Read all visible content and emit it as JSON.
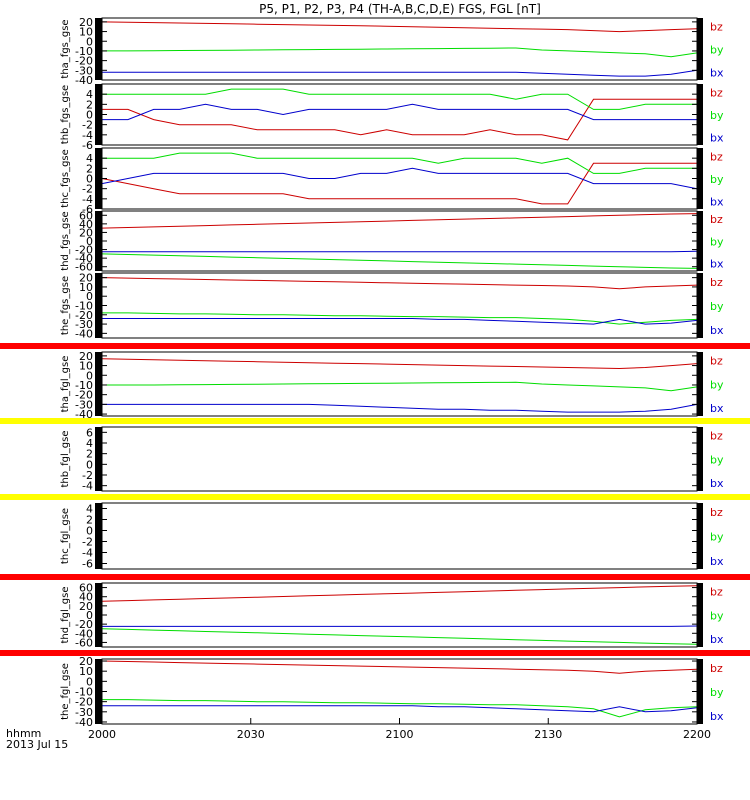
{
  "title": "P5, P1, P2, P3, P4 (TH-A,B,C,D,E) FGS, FGL [nT]",
  "time_axis": {
    "label_line1": "hhmm",
    "label_line2": "2013 Jul 15",
    "tick_labels": [
      "2000",
      "2030",
      "2100",
      "2130",
      "2200"
    ]
  },
  "colors": {
    "bz": "#cc0000",
    "by": "#00dd00",
    "bx": "#0000cc"
  },
  "chart_data": [
    {
      "type": "line",
      "ylabel": "tha_fgs_gse",
      "ylim": [
        -40,
        24
      ],
      "ticks": [
        20,
        10,
        0,
        -10,
        -20,
        -30,
        -40
      ],
      "tick_labels": [
        "20",
        "10",
        "0",
        "-10",
        "-20",
        "-30",
        "-40"
      ],
      "header_bar": null,
      "series": [
        {
          "name": "bz",
          "values": [
            20,
            19.6,
            19.2,
            18.8,
            18.4,
            18,
            17.6,
            17.2,
            16.8,
            16.4,
            16,
            15.5,
            15,
            14.5,
            14,
            13.5,
            13,
            12.5,
            12,
            11,
            10,
            11,
            12,
            13
          ]
        },
        {
          "name": "by",
          "values": [
            -10,
            -10,
            -9.8,
            -9.6,
            -9.4,
            -9.2,
            -9,
            -8.8,
            -8.6,
            -8.4,
            -8.2,
            -8,
            -7.8,
            -7.6,
            -7.4,
            -7.2,
            -7,
            -9,
            -10,
            -11,
            -12,
            -13,
            -16,
            -12
          ]
        },
        {
          "name": "bx",
          "values": [
            -32,
            -32,
            -32,
            -32,
            -32,
            -32,
            -32,
            -32,
            -32,
            -32,
            -32,
            -32,
            -32,
            -32,
            -32,
            -32,
            -32,
            -33,
            -34,
            -35,
            -36,
            -36,
            -34,
            -30
          ]
        }
      ]
    },
    {
      "type": "line",
      "ylabel": "thb_fgs_gse",
      "ylim": [
        -6,
        6
      ],
      "ticks": [
        4,
        2,
        0,
        -2,
        -4,
        -6
      ],
      "tick_labels": [
        "4",
        "2",
        "0",
        "-2",
        "-4",
        "-6"
      ],
      "header_bar": null,
      "series": [
        {
          "name": "bz",
          "values": [
            1,
            1,
            -1,
            -2,
            -2,
            -2,
            -3,
            -3,
            -3,
            -3,
            -4,
            -3,
            -4,
            -4,
            -4,
            -3,
            -4,
            -4,
            -5,
            3,
            3,
            3,
            3,
            3
          ]
        },
        {
          "name": "by",
          "values": [
            4,
            4,
            4,
            4,
            4,
            5,
            5,
            5,
            4,
            4,
            4,
            4,
            4,
            4,
            4,
            4,
            3,
            4,
            4,
            1,
            1,
            2,
            2,
            2
          ]
        },
        {
          "name": "bx",
          "values": [
            -1,
            -1,
            1,
            1,
            2,
            1,
            1,
            0,
            1,
            1,
            1,
            1,
            2,
            1,
            1,
            1,
            1,
            1,
            1,
            -1,
            -1,
            -1,
            -1,
            -1
          ]
        }
      ]
    },
    {
      "type": "line",
      "ylabel": "thc_fgs_gse",
      "ylim": [
        -6,
        6
      ],
      "ticks": [
        4,
        2,
        0,
        -2,
        -4,
        -6
      ],
      "tick_labels": [
        "4",
        "2",
        "0",
        "-2",
        "-4",
        "-6"
      ],
      "header_bar": null,
      "series": [
        {
          "name": "bz",
          "values": [
            0,
            -1,
            -2,
            -3,
            -3,
            -3,
            -3,
            -3,
            -4,
            -4,
            -4,
            -4,
            -4,
            -4,
            -4,
            -4,
            -4,
            -5,
            -5,
            3,
            3,
            3,
            3,
            3
          ]
        },
        {
          "name": "by",
          "values": [
            4,
            4,
            4,
            5,
            5,
            5,
            4,
            4,
            4,
            4,
            4,
            4,
            4,
            3,
            4,
            4,
            4,
            3,
            4,
            1,
            1,
            2,
            2,
            2
          ]
        },
        {
          "name": "bx",
          "values": [
            -1,
            0,
            1,
            1,
            1,
            1,
            1,
            1,
            0,
            0,
            1,
            1,
            2,
            1,
            1,
            1,
            1,
            1,
            1,
            -1,
            -1,
            -1,
            -1,
            -2
          ]
        }
      ]
    },
    {
      "type": "line",
      "ylabel": "thd_fgs_gse",
      "ylim": [
        -70,
        70
      ],
      "ticks": [
        60,
        40,
        20,
        0,
        -20,
        -40,
        -60
      ],
      "tick_labels": [
        "60",
        "40",
        "20",
        "0",
        "-20",
        "-40",
        "-60"
      ],
      "header_bar": null,
      "series": [
        {
          "name": "bz",
          "values": [
            30,
            31.5,
            33,
            34.5,
            36,
            37.5,
            39,
            40.5,
            42,
            43.5,
            45,
            46.5,
            48,
            49.5,
            51,
            52.5,
            54,
            55.5,
            57,
            58.5,
            60,
            61.5,
            63,
            64
          ]
        },
        {
          "name": "by",
          "values": [
            -30,
            -31.5,
            -33,
            -34.5,
            -36,
            -37.5,
            -39,
            -40.5,
            -42,
            -43.5,
            -45,
            -46.5,
            -48,
            -49.5,
            -51,
            -52.5,
            -54,
            -55.5,
            -57,
            -58.5,
            -60,
            -61.5,
            -63,
            -64
          ]
        },
        {
          "name": "bx",
          "values": [
            -25,
            -25,
            -25,
            -25,
            -25,
            -25,
            -25,
            -25,
            -25,
            -25,
            -25,
            -25,
            -25,
            -25,
            -25,
            -25,
            -25,
            -25,
            -25,
            -25,
            -25,
            -25,
            -25,
            -24
          ]
        }
      ]
    },
    {
      "type": "line",
      "ylabel": "the_fgs_gse",
      "ylim": [
        -45,
        25
      ],
      "ticks": [
        20,
        10,
        0,
        -10,
        -20,
        -30,
        -40
      ],
      "tick_labels": [
        "20",
        "10",
        "0",
        "-10",
        "-20",
        "-30",
        "-40"
      ],
      "header_bar": null,
      "series": [
        {
          "name": "bz",
          "values": [
            20,
            19.5,
            19,
            18.5,
            18,
            17.5,
            17,
            16.5,
            16,
            15.5,
            15,
            14.5,
            14,
            13.5,
            13,
            12.5,
            12,
            11.5,
            11,
            10,
            8,
            10,
            11,
            12
          ]
        },
        {
          "name": "by",
          "values": [
            -18,
            -18,
            -18.5,
            -19,
            -19,
            -19.5,
            -20,
            -20,
            -20.5,
            -21,
            -21,
            -21.5,
            -22,
            -22,
            -22.5,
            -23,
            -23,
            -24,
            -25,
            -27,
            -30,
            -28,
            -26,
            -25
          ]
        },
        {
          "name": "bx",
          "values": [
            -24,
            -24,
            -24,
            -24,
            -24,
            -24,
            -24,
            -24,
            -24,
            -24,
            -24,
            -24,
            -24,
            -25,
            -25,
            -26,
            -27,
            -28,
            -29,
            -30,
            -25,
            -30,
            -29,
            -26
          ]
        }
      ]
    },
    {
      "type": "line",
      "ylabel": "tha_fgl_gse",
      "ylim": [
        -42,
        24
      ],
      "ticks": [
        20,
        10,
        0,
        -10,
        -20,
        -30,
        -40
      ],
      "tick_labels": [
        "20",
        "10",
        "0",
        "-10",
        "-20",
        "-30",
        "-40"
      ],
      "header_bar": "red",
      "series": [
        {
          "name": "bz",
          "values": [
            17,
            16.5,
            16,
            15.5,
            15,
            14.5,
            14,
            13.5,
            13,
            12.5,
            12,
            11.5,
            11,
            10.5,
            10,
            9.5,
            9,
            8.5,
            8,
            7.5,
            7,
            8,
            10,
            12
          ]
        },
        {
          "name": "by",
          "values": [
            -10,
            -10,
            -10,
            -9.8,
            -9.6,
            -9.4,
            -9.2,
            -9,
            -8.8,
            -8.6,
            -8.4,
            -8.2,
            -8,
            -7.8,
            -7.6,
            -7.4,
            -7.2,
            -9,
            -10,
            -11,
            -12,
            -13,
            -16,
            -12
          ]
        },
        {
          "name": "bx",
          "values": [
            -30,
            -30,
            -30,
            -30,
            -30,
            -30,
            -30,
            -30,
            -30,
            -31,
            -32,
            -33,
            -34,
            -35,
            -35,
            -36,
            -36,
            -37,
            -38,
            -38,
            -38,
            -37,
            -35,
            -30
          ]
        }
      ]
    },
    {
      "type": "line",
      "ylabel": "thb_fgl_gse",
      "ylim": [
        -5,
        7
      ],
      "ticks": [
        6,
        4,
        2,
        0,
        -2,
        -4
      ],
      "tick_labels": [
        "6",
        "4",
        "2",
        "0",
        "-2",
        "-4"
      ],
      "header_bar": "yellow",
      "series": []
    },
    {
      "type": "line",
      "ylabel": "thc_fgl_gse",
      "ylim": [
        -7,
        5
      ],
      "ticks": [
        4,
        2,
        0,
        -2,
        -4,
        -6
      ],
      "tick_labels": [
        "4",
        "2",
        "0",
        "-2",
        "-4",
        "-6"
      ],
      "header_bar": "yellow",
      "series": []
    },
    {
      "type": "line",
      "ylabel": "thd_fgl_gse",
      "ylim": [
        -70,
        70
      ],
      "ticks": [
        60,
        40,
        20,
        0,
        -20,
        -40,
        -60
      ],
      "tick_labels": [
        "60",
        "40",
        "20",
        "0",
        "-20",
        "-40",
        "-60"
      ],
      "header_bar": "red",
      "series": [
        {
          "name": "bz",
          "values": [
            30,
            31.5,
            33,
            34.5,
            36,
            37.5,
            39,
            40.5,
            42,
            43.5,
            45,
            46.5,
            48,
            49.5,
            51,
            52.5,
            54,
            55.5,
            57,
            58.5,
            60,
            61.5,
            63,
            64
          ]
        },
        {
          "name": "by",
          "values": [
            -30,
            -31.5,
            -33,
            -34.5,
            -36,
            -37.5,
            -39,
            -40.5,
            -42,
            -43.5,
            -45,
            -46.5,
            -48,
            -49.5,
            -51,
            -52.5,
            -54,
            -55.5,
            -57,
            -58.5,
            -60,
            -61.5,
            -63,
            -64
          ]
        },
        {
          "name": "bx",
          "values": [
            -25,
            -25,
            -25,
            -25,
            -25,
            -25,
            -25,
            -25,
            -25,
            -25,
            -25,
            -25,
            -25,
            -25,
            -25,
            -25,
            -25,
            -25,
            -25,
            -25,
            -25,
            -25,
            -25,
            -24
          ]
        }
      ]
    },
    {
      "type": "line",
      "ylabel": "the_fgl_gse",
      "ylim": [
        -42,
        22
      ],
      "ticks": [
        20,
        10,
        0,
        -10,
        -20,
        -30,
        -40
      ],
      "tick_labels": [
        "20",
        "10",
        "0",
        "-10",
        "-20",
        "-30",
        "-40"
      ],
      "header_bar": "red",
      "series": [
        {
          "name": "bz",
          "values": [
            20,
            19.5,
            19,
            18.5,
            18,
            17.5,
            17,
            16.5,
            16,
            15.5,
            15,
            14.5,
            14,
            13.5,
            13,
            12.5,
            12,
            11.5,
            11,
            10,
            8,
            10,
            11,
            12
          ]
        },
        {
          "name": "by",
          "values": [
            -18,
            -18,
            -18.5,
            -19,
            -19,
            -19.5,
            -20,
            -20,
            -20.5,
            -21,
            -21,
            -21.5,
            -22,
            -22,
            -22.5,
            -23,
            -23,
            -24,
            -25,
            -27,
            -35,
            -28,
            -26,
            -25
          ]
        },
        {
          "name": "bx",
          "values": [
            -24,
            -24,
            -24,
            -24,
            -24,
            -24,
            -24,
            -24,
            -24,
            -24,
            -24,
            -24,
            -24,
            -25,
            -25,
            -26,
            -27,
            -28,
            -29,
            -30,
            -25,
            -30,
            -29,
            -26
          ]
        }
      ]
    }
  ]
}
